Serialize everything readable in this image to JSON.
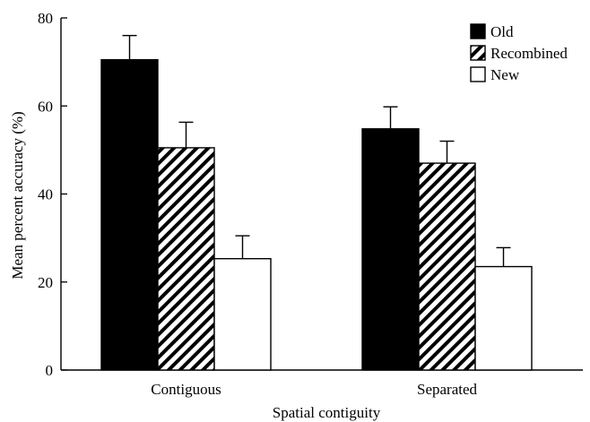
{
  "chart_data": {
    "type": "bar",
    "xlabel": "Spatial contiguity",
    "ylabel": "Mean percent accuracy (%)",
    "ylim": [
      0,
      80
    ],
    "yticks": [
      0,
      20,
      40,
      60,
      80
    ],
    "categories": [
      "Contiguous",
      "Separated"
    ],
    "series": [
      {
        "name": "Old",
        "values": [
          70.5,
          54.8
        ],
        "errors": [
          5.5,
          5.0
        ],
        "fill": "solid-black"
      },
      {
        "name": "Recombined",
        "values": [
          50.5,
          47.0
        ],
        "errors": [
          5.8,
          5.0
        ],
        "fill": "diagonal-hatch"
      },
      {
        "name": "New",
        "values": [
          25.3,
          23.5
        ],
        "errors": [
          5.2,
          4.3
        ],
        "fill": "white"
      }
    ],
    "legend_position": "top-right",
    "grid": false,
    "colors": {
      "bar_edge": "#000000",
      "solid": "#000000",
      "hatch": "#000000",
      "background": "#ffffff"
    }
  }
}
